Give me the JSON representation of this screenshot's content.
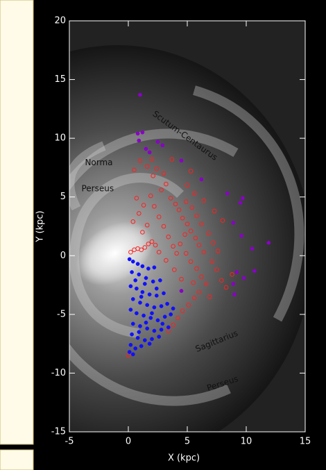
{
  "chart_data": {
    "type": "scatter",
    "xlabel": "X (kpc)",
    "ylabel": "Y (kpc)",
    "xlim": [
      -5,
      15
    ],
    "ylim": [
      -15,
      20
    ],
    "xticks": [
      -5,
      0,
      5,
      10,
      15
    ],
    "yticks": [
      -15,
      -10,
      -5,
      0,
      5,
      10,
      15,
      20
    ],
    "annotations": [
      {
        "text": "Scutum-Centaurus",
        "x": 4.8,
        "y": 10.2,
        "angle": 36
      },
      {
        "text": "Norma",
        "x": -2.5,
        "y": 7.9,
        "angle": 0
      },
      {
        "text": "Perseus",
        "x": -2.6,
        "y": 5.7,
        "angle": 0
      },
      {
        "text": "Sagittarius",
        "x": 7.5,
        "y": -7.3,
        "angle": -22
      },
      {
        "text": "Perseus",
        "x": 8.0,
        "y": -10.9,
        "angle": -18
      }
    ],
    "series": [
      {
        "color": "#ff2020",
        "marker": "open",
        "x": [
          0.2,
          0.5,
          0.8,
          1.1,
          1.4,
          1.7,
          2.0,
          2.3,
          1.2,
          1.6,
          0.4,
          0.9,
          1.3,
          0.7,
          1.9,
          2.2,
          2.6,
          3.0,
          3.4,
          3.8,
          4.1,
          2.8,
          3.2,
          2.1,
          1.6,
          2.4,
          3.0,
          0.5,
          1.0,
          2.0,
          3.6,
          4.0,
          4.3,
          4.6,
          5.0,
          5.3,
          5.7,
          6.0,
          6.4,
          4.9,
          5.4,
          5.8,
          6.2,
          6.8,
          7.2,
          7.6,
          4.4,
          4.9,
          5.3,
          5.8,
          6.2,
          6.6,
          6.0,
          5.6,
          5.1,
          4.6,
          4.2,
          3.8,
          3.4,
          7.1,
          7.5,
          7.9,
          8.3,
          8.8,
          5.0,
          5.6,
          6.4,
          7.3,
          8.0,
          5.3,
          3.7,
          4.8,
          5.5,
          6.9,
          4.5,
          3.9,
          3.2,
          2.6,
          0.0
        ],
        "values": [
          0.3,
          0.5,
          0.6,
          0.5,
          0.7,
          1.0,
          1.2,
          0.9,
          2.0,
          2.6,
          2.9,
          3.6,
          4.3,
          4.9,
          5.1,
          4.2,
          3.3,
          2.5,
          1.6,
          0.8,
          0.2,
          5.6,
          6.1,
          6.8,
          7.6,
          7.4,
          7.0,
          7.3,
          8.1,
          8.2,
          4.9,
          4.4,
          3.9,
          3.2,
          2.7,
          2.1,
          1.5,
          0.9,
          0.3,
          4.6,
          4.1,
          3.4,
          2.7,
          1.9,
          1.1,
          0.4,
          1.0,
          0.2,
          -0.5,
          -1.1,
          -1.8,
          -2.4,
          -3.1,
          -3.6,
          -4.2,
          -4.7,
          -5.3,
          -5.9,
          -6.4,
          -0.5,
          -1.2,
          -2.1,
          -2.7,
          -1.6,
          6.0,
          5.3,
          4.7,
          3.8,
          3.0,
          7.2,
          8.2,
          1.8,
          -2.3,
          -3.5,
          -2.0,
          -1.2,
          -0.4,
          0.3,
          -8.5
        ]
      },
      {
        "color": "#1010ff",
        "marker": "filled",
        "x": [
          0.1,
          0.4,
          0.8,
          1.2,
          1.7,
          2.2,
          0.3,
          0.9,
          1.5,
          2.1,
          2.7,
          0.2,
          0.7,
          1.2,
          1.8,
          2.4,
          3.0,
          0.4,
          1.0,
          1.6,
          2.2,
          2.8,
          3.3,
          0.2,
          0.7,
          1.3,
          1.9,
          2.5,
          3.1,
          3.6,
          0.4,
          1.0,
          1.6,
          2.2,
          2.8,
          3.4,
          0.3,
          0.8,
          1.4,
          2.0,
          2.6,
          0.2,
          0.6,
          1.1,
          0.1,
          0.4,
          1.5,
          2.0,
          1.1,
          0.6,
          2.9,
          3.8,
          0.9,
          1.8,
          2.4,
          1.4
        ],
        "values": [
          -0.3,
          -0.5,
          -0.7,
          -0.9,
          -1.1,
          -1.0,
          -1.4,
          -1.6,
          -1.9,
          -2.2,
          -2.1,
          -2.6,
          -2.8,
          -3.1,
          -3.3,
          -3.4,
          -3.2,
          -3.7,
          -4.0,
          -4.2,
          -4.4,
          -4.3,
          -4.1,
          -4.6,
          -4.9,
          -5.1,
          -5.3,
          -5.5,
          -5.2,
          -5.0,
          -5.8,
          -6.0,
          -6.2,
          -6.4,
          -6.3,
          -6.1,
          -6.7,
          -7.0,
          -7.2,
          -7.1,
          -6.9,
          -7.6,
          -7.9,
          -7.7,
          -8.2,
          -8.4,
          -5.7,
          -4.9,
          -3.5,
          -2.1,
          -5.8,
          -4.5,
          -6.5,
          -7.5,
          -2.8,
          -2.4
        ]
      },
      {
        "color": "#8a00c8",
        "marker": "filled",
        "x": [
          1.0,
          0.8,
          1.2,
          0.9,
          1.5,
          1.8,
          2.5,
          2.9,
          4.5,
          6.2,
          8.4,
          9.5,
          9.7,
          8.9,
          9.6,
          10.5,
          11.9,
          10.7,
          9.2,
          9.8,
          8.9,
          9.0,
          4.5
        ],
        "values": [
          13.7,
          10.4,
          10.5,
          9.8,
          9.1,
          8.8,
          9.7,
          9.4,
          8.1,
          6.5,
          5.3,
          4.5,
          4.9,
          2.8,
          1.7,
          0.6,
          1.1,
          -1.3,
          -1.4,
          -1.9,
          -2.4,
          -3.3,
          -3.0
        ]
      }
    ]
  }
}
